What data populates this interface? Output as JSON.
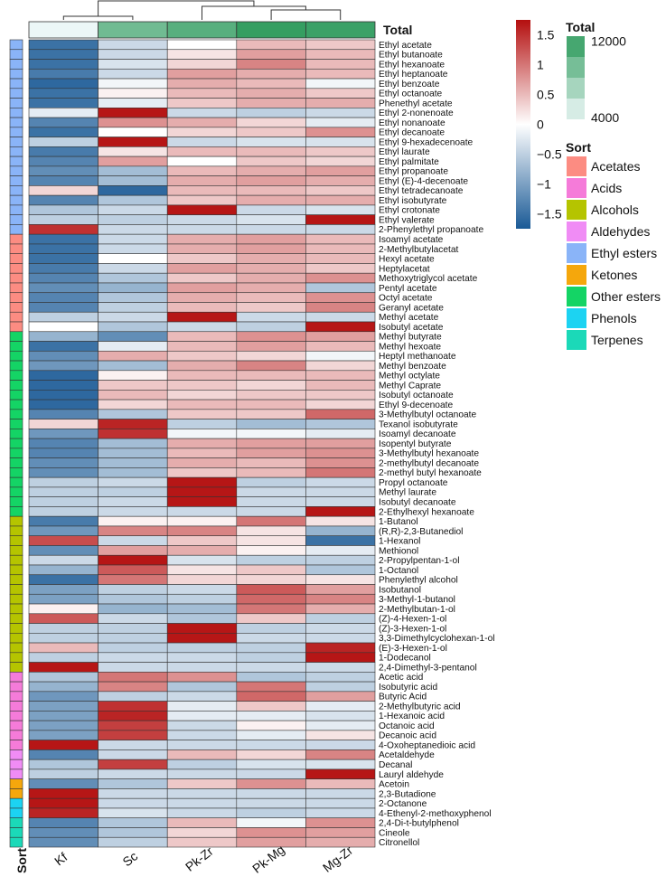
{
  "chart_data": {
    "type": "heatmap",
    "columns": [
      "Kf",
      "Sc",
      "Pk-Zr",
      "Pk-Mg",
      "Mg-Zr"
    ],
    "column_totals": [
      3900,
      9500,
      10600,
      12200,
      11900
    ],
    "rows": [
      {
        "name": "Ethyl acetate",
        "sort": "Ethyl esters",
        "values": [
          -1.5,
          -0.4,
          0.0,
          0.5,
          0.4
        ]
      },
      {
        "name": "Ethyl butanoate",
        "sort": "Ethyl esters",
        "values": [
          -1.5,
          -0.4,
          0.2,
          0.7,
          0.5
        ]
      },
      {
        "name": "Ethyl hexanoate",
        "sort": "Ethyl esters",
        "values": [
          -1.5,
          -0.3,
          0.3,
          0.9,
          0.5
        ]
      },
      {
        "name": "Ethyl heptanoate",
        "sort": "Ethyl esters",
        "values": [
          -1.4,
          -0.4,
          0.7,
          0.6,
          0.5
        ]
      },
      {
        "name": "Ethyl benzoate",
        "sort": "Ethyl esters",
        "values": [
          -1.6,
          -0.1,
          0.6,
          0.5,
          -0.1
        ]
      },
      {
        "name": "Ethyl octanoate",
        "sort": "Ethyl esters",
        "values": [
          -1.5,
          0.1,
          0.5,
          0.6,
          0.4
        ]
      },
      {
        "name": "Phenethyl acetate",
        "sort": "Ethyl esters",
        "values": [
          -1.5,
          -0.2,
          0.4,
          0.6,
          0.6
        ]
      },
      {
        "name": "Ethyl 2-nonenoate",
        "sort": "Ethyl esters",
        "values": [
          -0.2,
          1.7,
          -0.4,
          -0.5,
          -0.4
        ]
      },
      {
        "name": "Ethyl nonanoate",
        "sort": "Ethyl esters",
        "values": [
          -1.3,
          0.8,
          0.6,
          0.3,
          -0.2
        ]
      },
      {
        "name": "Ethyl decanoate",
        "sort": "Ethyl esters",
        "values": [
          -1.5,
          0.0,
          0.3,
          0.4,
          0.8
        ]
      },
      {
        "name": "Ethyl 9-hexadecenoate",
        "sort": "Ethyl esters",
        "values": [
          -0.5,
          1.7,
          -0.4,
          -0.3,
          -0.3
        ]
      },
      {
        "name": "Ethyl laurate",
        "sort": "Ethyl esters",
        "values": [
          -1.4,
          0.2,
          0.5,
          0.5,
          0.4
        ]
      },
      {
        "name": "Ethyl palmitate",
        "sort": "Ethyl esters",
        "values": [
          -1.3,
          0.7,
          0.0,
          0.4,
          0.3
        ]
      },
      {
        "name": "Ethyl propanoate",
        "sort": "Ethyl esters",
        "values": [
          -1.2,
          -0.7,
          0.5,
          0.6,
          0.7
        ]
      },
      {
        "name": "Ethyl (E)-4-decenoate",
        "sort": "Ethyl esters",
        "values": [
          -1.3,
          -0.7,
          0.6,
          0.7,
          0.6
        ]
      },
      {
        "name": "Ethyl tetradecanoate",
        "sort": "Ethyl esters",
        "values": [
          0.3,
          -1.6,
          0.5,
          0.5,
          0.4
        ]
      },
      {
        "name": "Ethyl isobutyrate",
        "sort": "Ethyl esters",
        "values": [
          -1.3,
          -0.6,
          0.4,
          0.6,
          0.6
        ]
      },
      {
        "name": "Ethyl crotonate",
        "sort": "Ethyl esters",
        "values": [
          -0.6,
          -0.4,
          1.7,
          -0.4,
          -0.3
        ]
      },
      {
        "name": "Ethyl valerate",
        "sort": "Ethyl esters",
        "values": [
          -0.5,
          -0.5,
          -0.4,
          -0.3,
          1.7
        ]
      },
      {
        "name": "2-Phenylethyl propanoate",
        "sort": "Ethyl esters",
        "values": [
          1.5,
          -0.4,
          -0.4,
          -0.4,
          -0.4
        ]
      },
      {
        "name": "Isoamyl acetate",
        "sort": "Acetates",
        "values": [
          -1.5,
          -0.4,
          0.6,
          0.7,
          0.5
        ]
      },
      {
        "name": "2-Methylbutylacetat",
        "sort": "Acetates",
        "values": [
          -1.5,
          -0.4,
          0.6,
          0.7,
          0.5
        ]
      },
      {
        "name": "Hexyl acetate",
        "sort": "Acetates",
        "values": [
          -1.5,
          0.0,
          0.4,
          0.6,
          0.5
        ]
      },
      {
        "name": "Heptylacetat",
        "sort": "Acetates",
        "values": [
          -1.4,
          -0.4,
          0.7,
          0.6,
          0.4
        ]
      },
      {
        "name": "Methoxytriglycol acetate",
        "sort": "Acetates",
        "values": [
          -1.3,
          -0.6,
          0.4,
          0.6,
          0.8
        ]
      },
      {
        "name": "Pentyl acetate",
        "sort": "Acetates",
        "values": [
          -1.2,
          -0.8,
          0.7,
          0.6,
          -0.6
        ]
      },
      {
        "name": "Octyl acetate",
        "sort": "Acetates",
        "values": [
          -1.3,
          -0.6,
          0.6,
          0.5,
          0.8
        ]
      },
      {
        "name": "Geranyl acetate",
        "sort": "Acetates",
        "values": [
          -1.3,
          -0.5,
          0.5,
          0.4,
          0.9
        ]
      },
      {
        "name": "Methyl acetate",
        "sort": "Acetates",
        "values": [
          -0.5,
          -0.4,
          1.7,
          -0.4,
          -0.4
        ]
      },
      {
        "name": "Isobutyl acetate",
        "sort": "Acetates",
        "values": [
          0.0,
          -0.6,
          -0.4,
          -0.5,
          1.7
        ]
      },
      {
        "name": "Methyl butyrate",
        "sort": "Other esters",
        "values": [
          -0.8,
          -1.2,
          0.5,
          0.8,
          0.7
        ]
      },
      {
        "name": "Methyl hexoate",
        "sort": "Other esters",
        "values": [
          -1.5,
          -0.2,
          0.5,
          0.7,
          0.5
        ]
      },
      {
        "name": "Heptyl methanoate",
        "sort": "Other esters",
        "values": [
          -1.2,
          0.6,
          0.4,
          0.3,
          -0.1
        ]
      },
      {
        "name": "Methyl benzoate",
        "sort": "Other esters",
        "values": [
          -1.1,
          -0.7,
          0.6,
          0.9,
          0.3
        ]
      },
      {
        "name": "Methyl octylate",
        "sort": "Other esters",
        "values": [
          -1.6,
          0.1,
          0.5,
          0.5,
          0.5
        ]
      },
      {
        "name": "Methyl Caprate",
        "sort": "Other esters",
        "values": [
          -1.6,
          0.4,
          0.4,
          0.3,
          0.5
        ]
      },
      {
        "name": "Isobutyl octanoate",
        "sort": "Other esters",
        "values": [
          -1.6,
          0.5,
          0.3,
          0.4,
          0.4
        ]
      },
      {
        "name": "Ethyl 9-decenoate",
        "sort": "Other esters",
        "values": [
          -1.6,
          0.3,
          0.5,
          0.5,
          0.3
        ]
      },
      {
        "name": "3-Methylbutyl octanoate",
        "sort": "Other esters",
        "values": [
          -1.3,
          -0.6,
          0.4,
          0.4,
          1.1
        ]
      },
      {
        "name": "Texanol isobutyrate",
        "sort": "Other esters",
        "values": [
          0.3,
          1.6,
          -0.5,
          -0.7,
          -0.6
        ]
      },
      {
        "name": "Isoamyl decanoate",
        "sort": "Other esters",
        "values": [
          -1.1,
          1.5,
          -0.1,
          -0.1,
          -0.2
        ]
      },
      {
        "name": "Isopentyl butyrate",
        "sort": "Other esters",
        "values": [
          -1.3,
          -0.7,
          0.6,
          0.7,
          0.7
        ]
      },
      {
        "name": "3-Methylbutyl hexanoate",
        "sort": "Other esters",
        "values": [
          -1.3,
          -0.7,
          0.5,
          0.7,
          0.8
        ]
      },
      {
        "name": "2-methylbutyl decanoate",
        "sort": "Other esters",
        "values": [
          -1.2,
          -0.7,
          0.6,
          0.5,
          0.8
        ]
      },
      {
        "name": "2-methyl butyl hexanoate",
        "sort": "Other esters",
        "values": [
          -1.2,
          -0.7,
          0.4,
          0.5,
          1.0
        ]
      },
      {
        "name": "Propyl octanoate",
        "sort": "Other esters",
        "values": [
          -0.5,
          -0.4,
          1.7,
          -0.5,
          -0.4
        ]
      },
      {
        "name": "Methyl laurate",
        "sort": "Other esters",
        "values": [
          -0.5,
          -0.5,
          1.7,
          -0.4,
          -0.4
        ]
      },
      {
        "name": "Isobutyl decanoate",
        "sort": "Other esters",
        "values": [
          -0.5,
          -0.4,
          1.7,
          -0.4,
          -0.4
        ]
      },
      {
        "name": "2-Ethylhexyl hexanoate",
        "sort": "Other esters",
        "values": [
          -0.5,
          -0.4,
          -0.4,
          -0.4,
          1.7
        ]
      },
      {
        "name": "1-Butanol",
        "sort": "Alcohols",
        "values": [
          -1.4,
          0.1,
          0.1,
          1.0,
          0.2
        ]
      },
      {
        "name": "(R,R)-2,3-Butanediol",
        "sort": "Alcohols",
        "values": [
          -1.1,
          0.9,
          0.9,
          0.2,
          -0.8
        ]
      },
      {
        "name": "1-Hexanol",
        "sort": "Alcohols",
        "values": [
          1.3,
          -0.4,
          0.4,
          0.2,
          -1.5
        ]
      },
      {
        "name": "Methionol",
        "sort": "Alcohols",
        "values": [
          -1.2,
          0.7,
          0.6,
          0.1,
          -0.2
        ]
      },
      {
        "name": "2-Propylpentan-1-ol",
        "sort": "Alcohols",
        "values": [
          -0.4,
          1.7,
          -0.3,
          -0.5,
          -0.5
        ]
      },
      {
        "name": "1-Octanol",
        "sort": "Alcohols",
        "values": [
          -0.8,
          1.2,
          0.2,
          0.4,
          -0.6
        ]
      },
      {
        "name": "Phenylethyl alcohol",
        "sort": "Alcohols",
        "values": [
          -1.5,
          1.0,
          0.3,
          0.3,
          0.2
        ]
      },
      {
        "name": "Isobutanol",
        "sort": "Alcohols",
        "values": [
          -1.0,
          -0.5,
          -0.4,
          1.2,
          0.7
        ]
      },
      {
        "name": "3-Methyl-1-butanol",
        "sort": "Alcohols",
        "values": [
          -1.0,
          -0.6,
          -0.5,
          1.1,
          0.9
        ]
      },
      {
        "name": "2-Methylbutan-1-ol",
        "sort": "Alcohols",
        "values": [
          0.1,
          -0.8,
          -0.7,
          1.0,
          0.6
        ]
      },
      {
        "name": "(Z)-4-Hexen-1-ol",
        "sort": "Alcohols",
        "values": [
          1.2,
          -0.4,
          -0.6,
          0.4,
          -0.5
        ]
      },
      {
        "name": "(Z)-3-Hexen-1-ol",
        "sort": "Alcohols",
        "values": [
          -0.5,
          -0.5,
          1.7,
          -0.5,
          -0.4
        ]
      },
      {
        "name": "3,3-Dimethylcyclohexan-1-ol",
        "sort": "Alcohols",
        "values": [
          -0.5,
          -0.5,
          1.7,
          -0.4,
          -0.4
        ]
      },
      {
        "name": "(E)-3-Hexen-1-ol",
        "sort": "Alcohols",
        "values": [
          0.5,
          -0.5,
          -0.5,
          -0.5,
          1.6
        ]
      },
      {
        "name": "1-Dodecanol",
        "sort": "Alcohols",
        "values": [
          -0.5,
          -0.4,
          -0.4,
          -0.5,
          1.7
        ]
      },
      {
        "name": "2,4-Dimethyl-3-pentanol",
        "sort": "Alcohols",
        "values": [
          1.7,
          -0.4,
          -0.4,
          -0.4,
          -0.4
        ]
      },
      {
        "name": "Acetic acid",
        "sort": "Acids",
        "values": [
          -0.6,
          1.0,
          0.8,
          -0.6,
          -0.5
        ]
      },
      {
        "name": "Isobutyric acid",
        "sort": "Acids",
        "values": [
          -0.8,
          0.9,
          -0.6,
          1.0,
          -0.5
        ]
      },
      {
        "name": "Butyric Acid",
        "sort": "Acids",
        "values": [
          -1.1,
          -0.5,
          -0.4,
          1.1,
          0.7
        ]
      },
      {
        "name": "2-Methylbutyric acid",
        "sort": "Acids",
        "values": [
          -1.0,
          1.5,
          -0.2,
          0.4,
          -0.2
        ]
      },
      {
        "name": "1-Hexanoic acid",
        "sort": "Acids",
        "values": [
          -1.0,
          1.6,
          -0.2,
          -0.2,
          -0.3
        ]
      },
      {
        "name": "Octanoic acid",
        "sort": "Acids",
        "values": [
          -1.0,
          1.4,
          -0.4,
          0.1,
          -0.2
        ]
      },
      {
        "name": "Decanoic acid",
        "sort": "Acids",
        "values": [
          -1.0,
          1.4,
          -0.4,
          -0.2,
          0.2
        ]
      },
      {
        "name": "4-Oxoheptanedioic acid",
        "sort": "Acids",
        "values": [
          1.7,
          -0.4,
          -0.4,
          -0.4,
          -0.4
        ]
      },
      {
        "name": "Acetaldehyde",
        "sort": "Aldehydes",
        "values": [
          -1.3,
          -0.4,
          0.5,
          0.3,
          0.9
        ]
      },
      {
        "name": "Decanal",
        "sort": "Aldehydes",
        "values": [
          -0.6,
          1.4,
          -0.5,
          -0.3,
          -0.3
        ]
      },
      {
        "name": "Lauryl aldehyde",
        "sort": "Aldehydes",
        "values": [
          -0.5,
          -0.4,
          -0.4,
          -0.4,
          1.7
        ]
      },
      {
        "name": "Acetoin",
        "sort": "Ketones",
        "values": [
          -1.2,
          -0.6,
          0.4,
          0.8,
          0.5
        ]
      },
      {
        "name": "2,3-Butadione",
        "sort": "Ketones",
        "values": [
          1.7,
          -0.4,
          -0.4,
          -0.4,
          -0.4
        ]
      },
      {
        "name": "2-Octanone",
        "sort": "Phenols",
        "values": [
          1.7,
          -0.4,
          -0.4,
          -0.4,
          -0.4
        ]
      },
      {
        "name": "4-Ethenyl-2-methoxyphenol",
        "sort": "Phenols",
        "values": [
          1.6,
          -0.3,
          -0.4,
          -0.5,
          -0.4
        ]
      },
      {
        "name": "2,4-Di-t-butylphenol",
        "sort": "Terpenes",
        "values": [
          -1.3,
          -0.6,
          0.5,
          -0.1,
          0.8
        ]
      },
      {
        "name": "Cineole",
        "sort": "Terpenes",
        "values": [
          -1.2,
          -0.6,
          0.3,
          0.8,
          0.7
        ]
      },
      {
        "name": "Citronellol",
        "sort": "Terpenes",
        "values": [
          -1.2,
          -0.5,
          0.4,
          0.7,
          0.6
        ]
      }
    ],
    "color_scale": {
      "ticks": [
        1.5,
        1,
        0.5,
        0,
        -0.5,
        -1,
        -1.5
      ],
      "range": [
        -1.75,
        1.75
      ],
      "colors": [
        "#1a5a96",
        "#ffffff",
        "#b40f0f"
      ]
    },
    "total_legend": {
      "title": "Total",
      "ticks": [
        12000,
        4000
      ],
      "range": [
        3800,
        12500
      ],
      "colors": [
        "#eef8f9",
        "#2e9b5c"
      ]
    },
    "sort_legend": {
      "title": "Sort",
      "items": [
        {
          "label": "Acetates",
          "color": "#fc8c82"
        },
        {
          "label": "Acids",
          "color": "#f57bd9"
        },
        {
          "label": "Alcohols",
          "color": "#b5c400"
        },
        {
          "label": "Aldehydes",
          "color": "#f08cf5"
        },
        {
          "label": "Ethyl esters",
          "color": "#8ab4f8"
        },
        {
          "label": "Ketones",
          "color": "#f5a70c"
        },
        {
          "label": "Other esters",
          "color": "#14d465"
        },
        {
          "label": "Phenols",
          "color": "#1cd3f2"
        },
        {
          "label": "Terpenes",
          "color": "#1bd9b8"
        }
      ]
    },
    "col_annotation_label": "Total",
    "row_annotation_label": "Sort",
    "dendrogram": "columns clustered: ((Kf, Sc),(Pk-Zr,(Pk-Mg, Mg-Zr)))"
  }
}
